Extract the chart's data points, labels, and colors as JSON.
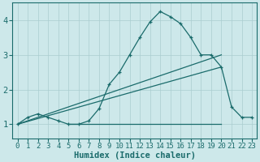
{
  "xlabel": "Humidex (Indice chaleur)",
  "bg_color": "#cde8ea",
  "grid_color": "#aacdd0",
  "line_color": "#1a6b6b",
  "xlim": [
    -0.5,
    23.5
  ],
  "ylim": [
    0.6,
    4.5
  ],
  "xtick_labels": [
    "0",
    "1",
    "2",
    "3",
    "4",
    "5",
    "6",
    "7",
    "8",
    "9",
    "10",
    "11",
    "12",
    "13",
    "14",
    "15",
    "16",
    "17",
    "18",
    "19",
    "20",
    "21",
    "22",
    "23"
  ],
  "yticks": [
    1,
    2,
    3,
    4
  ],
  "curve1_x": [
    0,
    1,
    2,
    3,
    4,
    5,
    6,
    7,
    8,
    9,
    10,
    11,
    12,
    13,
    14,
    15,
    16,
    17,
    18,
    19,
    20,
    21,
    22,
    23
  ],
  "curve1_y": [
    1.0,
    1.2,
    1.3,
    1.2,
    1.1,
    1.0,
    1.0,
    1.1,
    1.45,
    2.15,
    2.5,
    3.0,
    3.5,
    3.95,
    4.25,
    4.1,
    3.9,
    3.5,
    3.0,
    3.0,
    2.65,
    1.5,
    1.2,
    1.2
  ],
  "line1_x": [
    0,
    20
  ],
  "line1_y": [
    1.0,
    3.0
  ],
  "line2_x": [
    0,
    20
  ],
  "line2_y": [
    1.0,
    2.65
  ],
  "hline_x": [
    5,
    20
  ],
  "hline_y": [
    1.0,
    1.0
  ],
  "xlabel_fontsize": 7.5,
  "tick_fontsize": 6.5
}
